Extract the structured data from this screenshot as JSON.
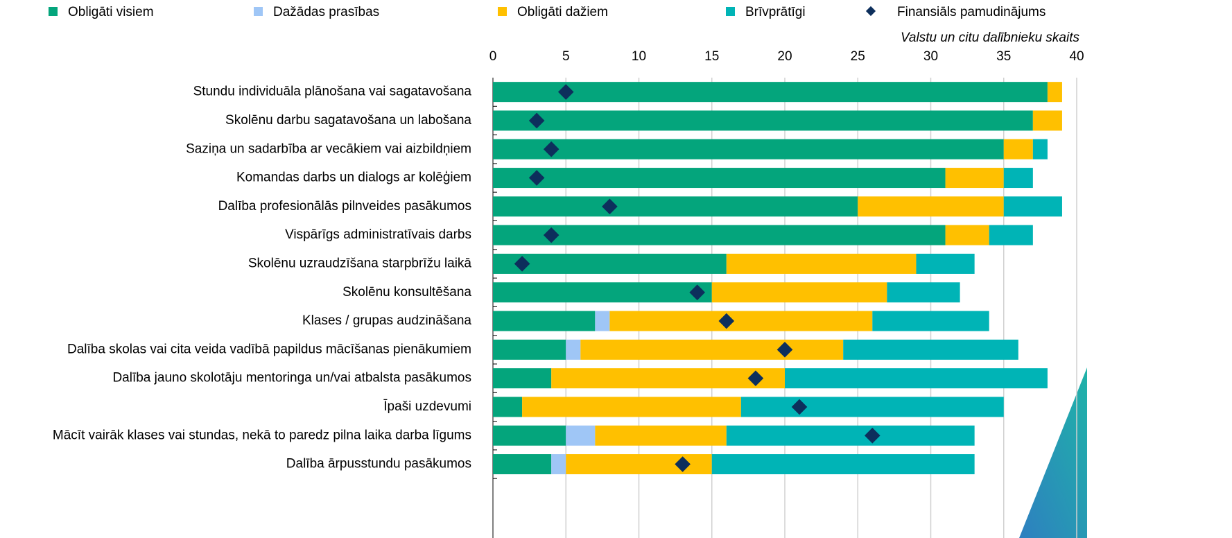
{
  "chart_data": {
    "type": "stacked_bar_horizontal",
    "x_axis_label": "Valstu un citu dalībnieku skaits",
    "categories": [
      "Stundu individuāla plānošana vai sagatavošana",
      "Skolēnu darbu sagatavošana un labošana",
      "Saziņa un sadarbība ar vecākiem vai aizbildņiem",
      "Komandas darbs un dialogs ar kolēģiem",
      "Dalība profesionālās pilnveides pasākumos",
      "Vispārīgs administratīvais darbs",
      "Skolēnu uzraudzīšana starpbrīžu laikā",
      "Skolēnu konsultēšana",
      "Klases / grupas audzināšana",
      "Dalība skolas vai cita veida vadībā papildus mācīšanas pienākumiem",
      "Dalība jauno skolotāju mentoringa un/vai atbalsta pasākumos",
      "Īpaši uzdevumi",
      "Mācīt vairāk klases vai stundas, nekā to paredz pilna laika darba līgums",
      "Dalība ārpusstundu pasākumos"
    ],
    "series": [
      {
        "name": "Obligāti visiem",
        "color": "#04a57c",
        "values": [
          38,
          37,
          35,
          31,
          25,
          31,
          16,
          15,
          7,
          5,
          4,
          2,
          5,
          4
        ]
      },
      {
        "name": "Dažādas prasības",
        "color": "#9fc6f6",
        "values": [
          0,
          0,
          0,
          0,
          0,
          0,
          0,
          0,
          1,
          1,
          0,
          0,
          2,
          1
        ]
      },
      {
        "name": "Obligāti dažiem",
        "color": "#ffc000",
        "values": [
          1,
          2,
          2,
          4,
          10,
          3,
          13,
          12,
          18,
          18,
          16,
          15,
          9,
          10
        ]
      },
      {
        "name": "Brīvprātīgi",
        "color": "#00b4b6",
        "values": [
          0,
          0,
          1,
          2,
          4,
          3,
          4,
          5,
          8,
          12,
          18,
          18,
          17,
          18
        ]
      }
    ],
    "markers": {
      "name": "Finansiāls pamudinājums",
      "color": "#0d2f5c",
      "values": [
        5,
        3,
        4,
        3,
        8,
        4,
        2,
        14,
        16,
        20,
        18,
        21,
        26,
        13
      ]
    },
    "xlim": [
      0,
      40
    ],
    "xticks": [
      0,
      5,
      10,
      15,
      20,
      25,
      30,
      35,
      40
    ],
    "grid": true
  }
}
